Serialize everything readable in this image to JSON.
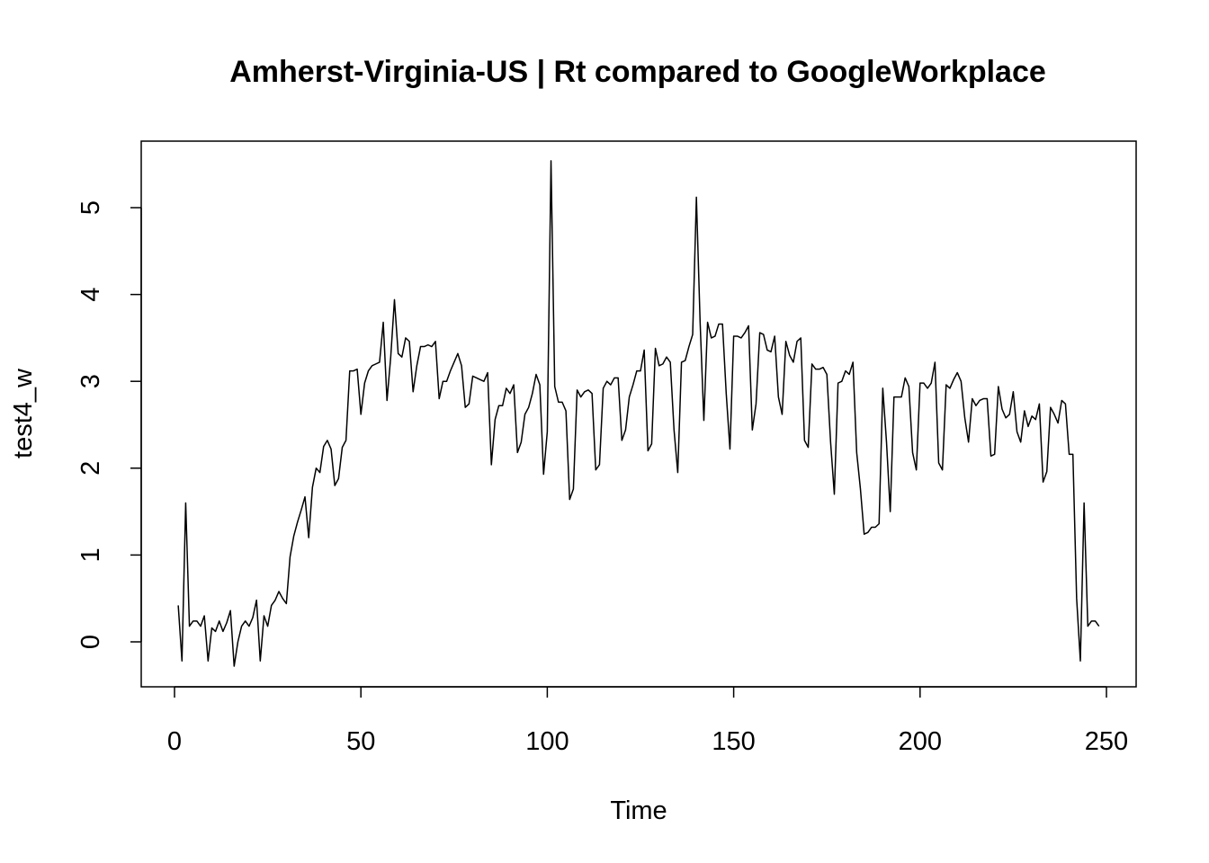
{
  "chart_data": {
    "type": "line",
    "title": "Amherst-Virginia-US | Rt compared to GoogleWorkplace",
    "xlabel": "Time",
    "ylabel": "test4_w",
    "xlim": [
      0,
      250
    ],
    "ylim": [
      -0.5,
      5.75
    ],
    "x_ticks": [
      0,
      50,
      100,
      150,
      200,
      250
    ],
    "y_ticks": [
      0,
      1,
      2,
      3,
      4,
      5
    ],
    "grid": false,
    "legend": "none",
    "line_color": "#000000",
    "series": [
      {
        "x": [
          1,
          2,
          3,
          4,
          5,
          6,
          7,
          8,
          9,
          10,
          11,
          12,
          13,
          14,
          15,
          16,
          17,
          18,
          19,
          20,
          21,
          22,
          23,
          24,
          25,
          26,
          27,
          28,
          29,
          30,
          31,
          32,
          33,
          34,
          35,
          36,
          37,
          38,
          39,
          40,
          41,
          42,
          43,
          44,
          45,
          46,
          47,
          48,
          49,
          50,
          51,
          52,
          53,
          54,
          55,
          56,
          57,
          58,
          59,
          60,
          61,
          62,
          63,
          64,
          65,
          66,
          67,
          68,
          69,
          70,
          71,
          72,
          73,
          74,
          75,
          76,
          77,
          78,
          79,
          80,
          81,
          82,
          83,
          84,
          85,
          86,
          87,
          88,
          89,
          90,
          91,
          92,
          93,
          94,
          95,
          96,
          97,
          98,
          99,
          100,
          101,
          102,
          103,
          104,
          105,
          106,
          107,
          108,
          109,
          110,
          111,
          112,
          113,
          114,
          115,
          116,
          117,
          118,
          119,
          120,
          121,
          122,
          123,
          124,
          125,
          126,
          127,
          128,
          129,
          130,
          131,
          132,
          133,
          134,
          135,
          136,
          137,
          138,
          139,
          140,
          141,
          142,
          143,
          144,
          145,
          146,
          147,
          148,
          149,
          150,
          151,
          152,
          153,
          154,
          155,
          156,
          157,
          158,
          159,
          160,
          161,
          162,
          163,
          164,
          165,
          166,
          167,
          168,
          169,
          170,
          171,
          172,
          173,
          174,
          175,
          176,
          177,
          178,
          179,
          180,
          181,
          182,
          183,
          184,
          185,
          186,
          187,
          188,
          189,
          190,
          191,
          192,
          193,
          194,
          195,
          196,
          197,
          198,
          199,
          200,
          201,
          202,
          203,
          204,
          205,
          206,
          207,
          208,
          209,
          210,
          211,
          212,
          213,
          214,
          215,
          216,
          217,
          218,
          219,
          220,
          221,
          222,
          223,
          224,
          225,
          226,
          227,
          228,
          229,
          230,
          231,
          232,
          233,
          234,
          235,
          236,
          237,
          238,
          239,
          240,
          241,
          242,
          243,
          244,
          245,
          246,
          247,
          248
        ],
        "y": [
          0.42,
          -0.22,
          1.6,
          0.18,
          0.24,
          0.24,
          0.18,
          0.3,
          -0.22,
          0.16,
          0.12,
          0.24,
          0.12,
          0.22,
          0.36,
          -0.28,
          0.0,
          0.18,
          0.24,
          0.18,
          0.28,
          0.48,
          -0.22,
          0.3,
          0.18,
          0.42,
          0.48,
          0.58,
          0.5,
          0.44,
          0.98,
          1.22,
          1.38,
          1.52,
          1.67,
          1.2,
          1.78,
          2.0,
          1.95,
          2.25,
          2.32,
          2.22,
          1.8,
          1.88,
          2.24,
          2.32,
          3.12,
          3.12,
          3.14,
          2.62,
          2.98,
          3.12,
          3.18,
          3.2,
          3.22,
          3.68,
          2.78,
          3.28,
          3.94,
          3.32,
          3.28,
          3.5,
          3.46,
          2.88,
          3.18,
          3.4,
          3.4,
          3.42,
          3.4,
          3.46,
          2.8,
          3.0,
          3.0,
          3.12,
          3.22,
          3.32,
          3.18,
          2.7,
          2.74,
          3.06,
          3.04,
          3.02,
          3.0,
          3.1,
          2.04,
          2.56,
          2.72,
          2.72,
          2.92,
          2.86,
          2.96,
          2.18,
          2.3,
          2.62,
          2.7,
          2.86,
          3.08,
          2.96,
          1.93,
          2.42,
          5.54,
          2.94,
          2.76,
          2.76,
          2.66,
          1.64,
          1.76,
          2.9,
          2.82,
          2.88,
          2.9,
          2.86,
          1.98,
          2.04,
          2.92,
          3.0,
          2.96,
          3.04,
          3.04,
          2.32,
          2.44,
          2.82,
          2.96,
          3.12,
          3.12,
          3.36,
          2.2,
          2.28,
          3.38,
          3.18,
          3.2,
          3.28,
          3.22,
          2.44,
          1.95,
          3.22,
          3.24,
          3.4,
          3.54,
          5.12,
          3.68,
          2.55,
          3.68,
          3.5,
          3.52,
          3.66,
          3.66,
          2.86,
          2.22,
          3.52,
          3.52,
          3.5,
          3.56,
          3.64,
          2.44,
          2.74,
          3.56,
          3.54,
          3.36,
          3.34,
          3.52,
          2.82,
          2.62,
          3.46,
          3.3,
          3.22,
          3.46,
          3.5,
          2.32,
          2.24,
          3.2,
          3.14,
          3.14,
          3.16,
          3.08,
          2.3,
          1.7,
          2.98,
          3.0,
          3.12,
          3.08,
          3.22,
          2.18,
          1.76,
          1.24,
          1.26,
          1.32,
          1.32,
          1.36,
          2.92,
          2.3,
          1.5,
          2.82,
          2.82,
          2.82,
          3.04,
          2.94,
          2.18,
          1.98,
          2.98,
          2.98,
          2.92,
          2.98,
          3.22,
          2.06,
          1.98,
          2.96,
          2.92,
          3.02,
          3.1,
          3.0,
          2.58,
          2.3,
          2.8,
          2.72,
          2.78,
          2.8,
          2.8,
          2.14,
          2.16,
          2.94,
          2.68,
          2.58,
          2.62,
          2.88,
          2.42,
          2.3,
          2.66,
          2.48,
          2.6,
          2.56,
          2.74,
          1.84,
          1.96,
          2.7,
          2.62,
          2.52,
          2.78,
          2.74,
          2.16,
          2.16,
          0.5,
          -0.22,
          1.6,
          0.18,
          0.24,
          0.24,
          0.18
        ]
      }
    ]
  }
}
